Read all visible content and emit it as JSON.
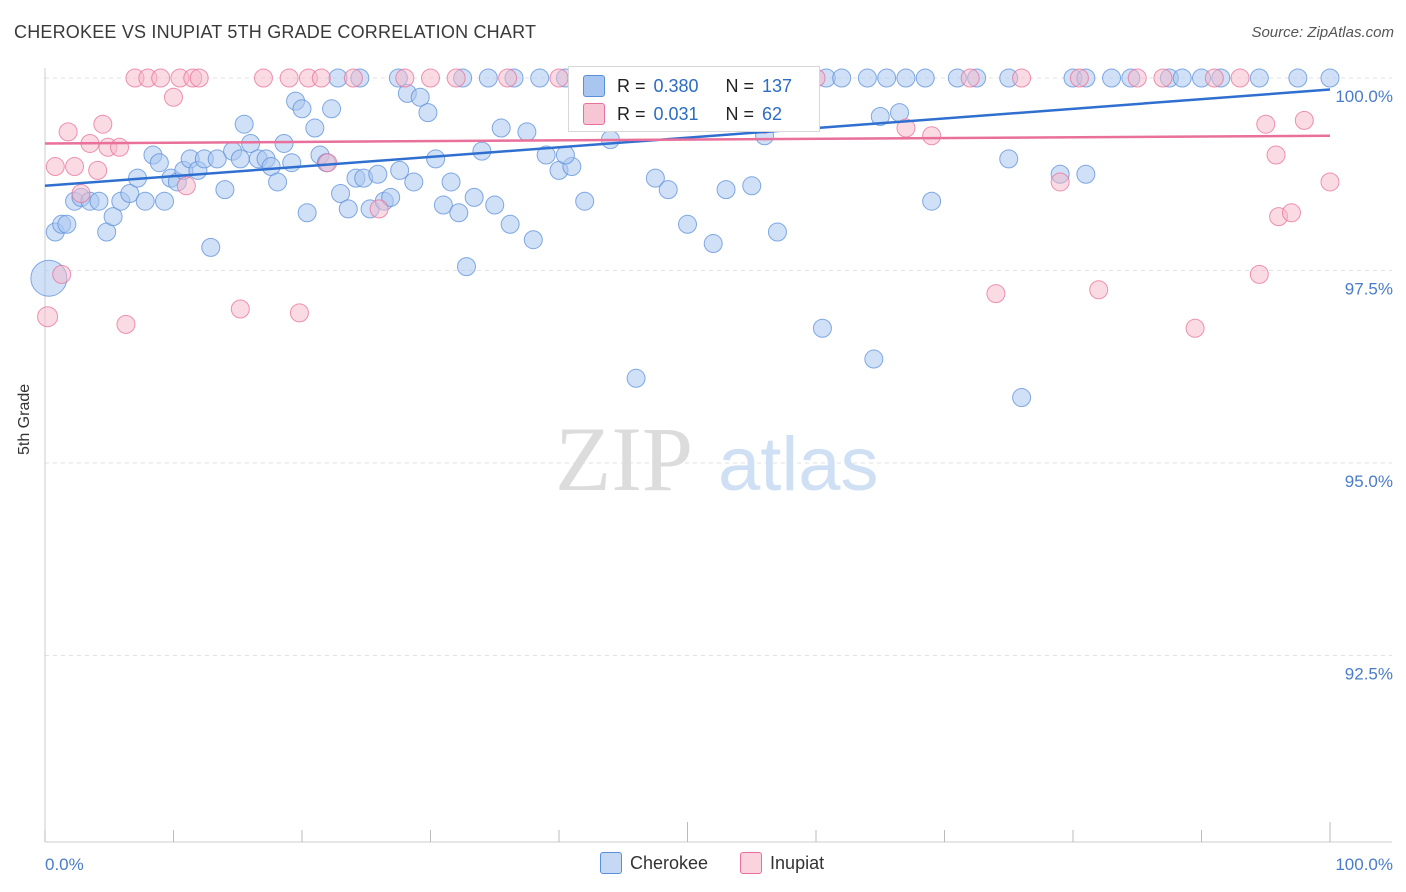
{
  "title": "CHEROKEE VS INUPIAT 5TH GRADE CORRELATION CHART",
  "source": "Source: ZipAtlas.com",
  "watermark": {
    "zip": "ZIP",
    "atlas": "atlas"
  },
  "stats": [
    {
      "r_label": "R =",
      "r_value": "0.380",
      "n_label": "N =",
      "n_value": "137",
      "color": "#a9c6f0"
    },
    {
      "r_label": "R =",
      "r_value": "0.031",
      "n_label": "N =",
      "n_value": "62",
      "color": "#f6b8ca"
    }
  ],
  "legend": [
    {
      "label": "Cherokee",
      "color": "#a9c6f0"
    },
    {
      "label": "Inupiat",
      "color": "#f6b8ca"
    }
  ],
  "chart_data": {
    "type": "scatter",
    "title": "CHEROKEE VS INUPIAT 5TH GRADE CORRELATION CHART",
    "xlabel": "",
    "ylabel": "5th Grade",
    "xlim": [
      0,
      100
    ],
    "ylim": [
      90.3,
      100.2
    ],
    "x_tick_labels": [
      "0.0%",
      "100.0%"
    ],
    "y_ticks": [
      92.5,
      95.0,
      97.5,
      100.0
    ],
    "y_tick_labels": [
      "92.5%",
      "95.0%",
      "97.5%",
      "100.0%"
    ],
    "series": [
      {
        "name": "Cherokee",
        "color": "#5b8fd9",
        "fill": "#a9c6f0",
        "trend": {
          "x": [
            0,
            100
          ],
          "y": [
            98.6,
            99.85
          ]
        },
        "points": [
          [
            0.3,
            97.4,
            18
          ],
          [
            0.8,
            98.0,
            9
          ],
          [
            1.3,
            98.1,
            9
          ],
          [
            1.7,
            98.1,
            9
          ],
          [
            2.3,
            98.4,
            9
          ],
          [
            2.8,
            98.45,
            9
          ],
          [
            3.5,
            98.4,
            9
          ],
          [
            4.2,
            98.4,
            9
          ],
          [
            4.8,
            98.0,
            9
          ],
          [
            5.3,
            98.2,
            9
          ],
          [
            5.9,
            98.4,
            9
          ],
          [
            6.6,
            98.5,
            9
          ],
          [
            7.2,
            98.7,
            9
          ],
          [
            7.8,
            98.4,
            9
          ],
          [
            8.4,
            99.0,
            9
          ],
          [
            8.9,
            98.9,
            9
          ],
          [
            9.3,
            98.4,
            9
          ],
          [
            9.8,
            98.7,
            9
          ],
          [
            10.3,
            98.65,
            9
          ],
          [
            10.8,
            98.8,
            9
          ],
          [
            11.3,
            98.95,
            9
          ],
          [
            11.9,
            98.8,
            9
          ],
          [
            12.4,
            98.95,
            9
          ],
          [
            12.9,
            97.8,
            9
          ],
          [
            13.4,
            98.95,
            9
          ],
          [
            14.0,
            98.55,
            9
          ],
          [
            14.6,
            99.05,
            9
          ],
          [
            15.2,
            98.95,
            9
          ],
          [
            15.5,
            99.4,
            9
          ],
          [
            16.0,
            99.15,
            9
          ],
          [
            16.6,
            98.95,
            9
          ],
          [
            17.2,
            98.95,
            9
          ],
          [
            17.6,
            98.85,
            9
          ],
          [
            18.1,
            98.65,
            9
          ],
          [
            18.6,
            99.15,
            9
          ],
          [
            19.2,
            98.9,
            9
          ],
          [
            19.5,
            99.7,
            9
          ],
          [
            20.0,
            99.6,
            9
          ],
          [
            20.4,
            98.25,
            9
          ],
          [
            21.0,
            99.35,
            9
          ],
          [
            21.4,
            99.0,
            9
          ],
          [
            21.9,
            98.9,
            9
          ],
          [
            22.3,
            99.6,
            9
          ],
          [
            23.0,
            98.5,
            9
          ],
          [
            23.6,
            98.3,
            9
          ],
          [
            24.2,
            98.7,
            9
          ],
          [
            24.8,
            98.7,
            9
          ],
          [
            25.3,
            98.3,
            9
          ],
          [
            25.9,
            98.75,
            9
          ],
          [
            26.4,
            98.4,
            9
          ],
          [
            26.9,
            98.45,
            9
          ],
          [
            27.6,
            98.8,
            9
          ],
          [
            28.2,
            99.8,
            9
          ],
          [
            28.7,
            98.65,
            9
          ],
          [
            29.2,
            99.75,
            9
          ],
          [
            29.8,
            99.55,
            9
          ],
          [
            30.4,
            98.95,
            9
          ],
          [
            31.0,
            98.35,
            9
          ],
          [
            31.6,
            98.65,
            9
          ],
          [
            32.2,
            98.25,
            9
          ],
          [
            32.8,
            97.55,
            9
          ],
          [
            33.4,
            98.45,
            9
          ],
          [
            34.0,
            99.05,
            9
          ],
          [
            35.0,
            98.35,
            9
          ],
          [
            36.2,
            98.1,
            9
          ],
          [
            38.0,
            97.9,
            9
          ],
          [
            39.0,
            99.0,
            9
          ],
          [
            40.0,
            98.8,
            9
          ],
          [
            41.0,
            98.85,
            9
          ],
          [
            42.0,
            98.4,
            9
          ],
          [
            44.0,
            99.2,
            9
          ],
          [
            46.0,
            96.1,
            9
          ],
          [
            47.5,
            98.7,
            9
          ],
          [
            50.0,
            98.1,
            9
          ],
          [
            52.0,
            97.85,
            9
          ],
          [
            53.0,
            98.55,
            9
          ],
          [
            55.0,
            98.6,
            9
          ],
          [
            56.0,
            99.25,
            9
          ],
          [
            57.0,
            98.0,
            9
          ],
          [
            60.5,
            96.75,
            9
          ],
          [
            64.5,
            96.35,
            9
          ],
          [
            65.0,
            99.5,
            9
          ],
          [
            66.5,
            99.55,
            9
          ],
          [
            69.0,
            98.4,
            9
          ],
          [
            75.0,
            98.95,
            9
          ],
          [
            76.0,
            95.85,
            9
          ],
          [
            79.0,
            98.75,
            9
          ],
          [
            81.0,
            98.75,
            9
          ],
          [
            48.5,
            98.55,
            9
          ],
          [
            44.5,
            99.5,
            9
          ],
          [
            35.5,
            99.35,
            9
          ],
          [
            37.5,
            99.3,
            9
          ],
          [
            40.5,
            99.0,
            9
          ],
          [
            22.8,
            100.0,
            9
          ],
          [
            24.5,
            100.0,
            9
          ],
          [
            27.5,
            100.0,
            9
          ],
          [
            32.5,
            100.0,
            9
          ],
          [
            34.5,
            100.0,
            9
          ],
          [
            36.5,
            100.0,
            9
          ],
          [
            38.5,
            100.0,
            9
          ],
          [
            40.5,
            100.0,
            9
          ],
          [
            42.5,
            100.0,
            9
          ],
          [
            44.5,
            100.0,
            9
          ],
          [
            46.0,
            100.0,
            9
          ],
          [
            48.0,
            100.0,
            9
          ],
          [
            50.0,
            100.0,
            9
          ],
          [
            52.0,
            100.0,
            9
          ],
          [
            54.0,
            100.0,
            9
          ],
          [
            56.0,
            100.0,
            9
          ],
          [
            57.5,
            100.0,
            9
          ],
          [
            59.5,
            100.0,
            9
          ],
          [
            60.8,
            100.0,
            9
          ],
          [
            62.0,
            100.0,
            9
          ],
          [
            64.0,
            100.0,
            9
          ],
          [
            65.5,
            100.0,
            9
          ],
          [
            67.0,
            100.0,
            9
          ],
          [
            68.5,
            100.0,
            9
          ],
          [
            71.0,
            100.0,
            9
          ],
          [
            72.5,
            100.0,
            9
          ],
          [
            75.0,
            100.0,
            9
          ],
          [
            80.0,
            100.0,
            9
          ],
          [
            81.0,
            100.0,
            9
          ],
          [
            83.0,
            100.0,
            9
          ],
          [
            84.5,
            100.0,
            9
          ],
          [
            87.5,
            100.0,
            9
          ],
          [
            88.5,
            100.0,
            9
          ],
          [
            90.0,
            100.0,
            9
          ],
          [
            91.5,
            100.0,
            9
          ],
          [
            94.5,
            100.0,
            9
          ],
          [
            97.5,
            100.0,
            9
          ],
          [
            100.0,
            100.0,
            9
          ]
        ]
      },
      {
        "name": "Inupiat",
        "color": "#e8709a",
        "fill": "#f6b8ca",
        "trend": {
          "x": [
            0,
            100
          ],
          "y": [
            99.15,
            99.25
          ]
        },
        "points": [
          [
            0.2,
            96.9,
            10
          ],
          [
            0.8,
            98.85,
            9
          ],
          [
            1.3,
            97.45,
            9
          ],
          [
            1.8,
            99.3,
            9
          ],
          [
            2.3,
            98.85,
            9
          ],
          [
            2.8,
            98.5,
            9
          ],
          [
            3.5,
            99.15,
            9
          ],
          [
            4.1,
            98.8,
            9
          ],
          [
            4.5,
            99.4,
            9
          ],
          [
            4.9,
            99.1,
            9
          ],
          [
            5.8,
            99.1,
            9
          ],
          [
            6.3,
            96.8,
            9
          ],
          [
            7.0,
            100.0,
            9
          ],
          [
            8.0,
            100.0,
            9
          ],
          [
            9.0,
            100.0,
            9
          ],
          [
            10.0,
            99.75,
            9
          ],
          [
            10.5,
            100.0,
            9
          ],
          [
            11.0,
            98.6,
            9
          ],
          [
            11.5,
            100.0,
            9
          ],
          [
            12.0,
            100.0,
            9
          ],
          [
            15.2,
            97.0,
            9
          ],
          [
            17.0,
            100.0,
            9
          ],
          [
            19.0,
            100.0,
            9
          ],
          [
            19.8,
            96.95,
            9
          ],
          [
            20.5,
            100.0,
            9
          ],
          [
            21.5,
            100.0,
            9
          ],
          [
            22.0,
            98.9,
            9
          ],
          [
            24.0,
            100.0,
            9
          ],
          [
            26.0,
            98.3,
            9
          ],
          [
            28.0,
            100.0,
            9
          ],
          [
            30.0,
            100.0,
            9
          ],
          [
            32.0,
            100.0,
            9
          ],
          [
            36.0,
            100.0,
            9
          ],
          [
            40.0,
            100.0,
            9
          ],
          [
            45.0,
            100.0,
            9
          ],
          [
            47.0,
            100.0,
            9
          ],
          [
            48.0,
            100.0,
            9
          ],
          [
            50.0,
            100.0,
            9
          ],
          [
            52.0,
            100.0,
            9
          ],
          [
            54.0,
            100.0,
            9
          ],
          [
            56.0,
            99.4,
            9
          ],
          [
            58.0,
            100.0,
            9
          ],
          [
            60.0,
            100.0,
            9
          ],
          [
            67.0,
            99.35,
            9
          ],
          [
            69.0,
            99.25,
            9
          ],
          [
            72.0,
            100.0,
            9
          ],
          [
            74.0,
            97.2,
            9
          ],
          [
            76.0,
            100.0,
            9
          ],
          [
            79.0,
            98.65,
            9
          ],
          [
            80.5,
            100.0,
            9
          ],
          [
            82.0,
            97.25,
            9
          ],
          [
            85.0,
            100.0,
            9
          ],
          [
            87.0,
            100.0,
            9
          ],
          [
            89.5,
            96.75,
            9
          ],
          [
            91.0,
            100.0,
            9
          ],
          [
            93.0,
            100.0,
            9
          ],
          [
            94.5,
            97.45,
            9
          ],
          [
            95.0,
            99.4,
            9
          ],
          [
            95.8,
            99.0,
            9
          ],
          [
            96.0,
            98.2,
            9
          ],
          [
            97.0,
            98.25,
            9
          ],
          [
            98.0,
            99.45,
            9
          ],
          [
            100.0,
            98.65,
            9
          ]
        ]
      }
    ]
  }
}
